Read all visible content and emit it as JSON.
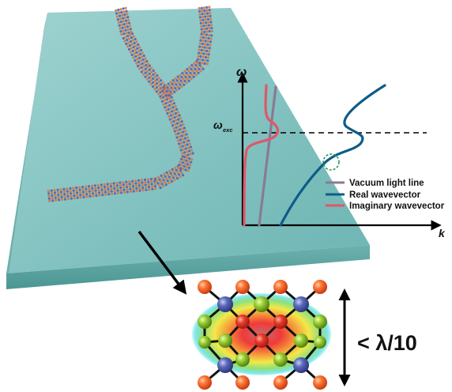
{
  "plot": {
    "y_axis_label": "ω",
    "x_axis_label": "k",
    "exc_label_main": "ω",
    "exc_label_sub": "exc",
    "legend": [
      {
        "label": "Vacuum light line",
        "color": "#8a7a92"
      },
      {
        "label": "Real wavevector",
        "color": "#0e5c86"
      },
      {
        "label": "Imaginary wavevector",
        "color": "#e0566a"
      }
    ]
  },
  "inset": {
    "size_label": "< λ/10"
  },
  "colors": {
    "slab_top": "#86c6c4",
    "slab_front": "#5aa5a2",
    "atom_orange": "#f0642a",
    "atom_blue": "#4a5aa8",
    "highlight_circle": "#2a9a5a"
  }
}
